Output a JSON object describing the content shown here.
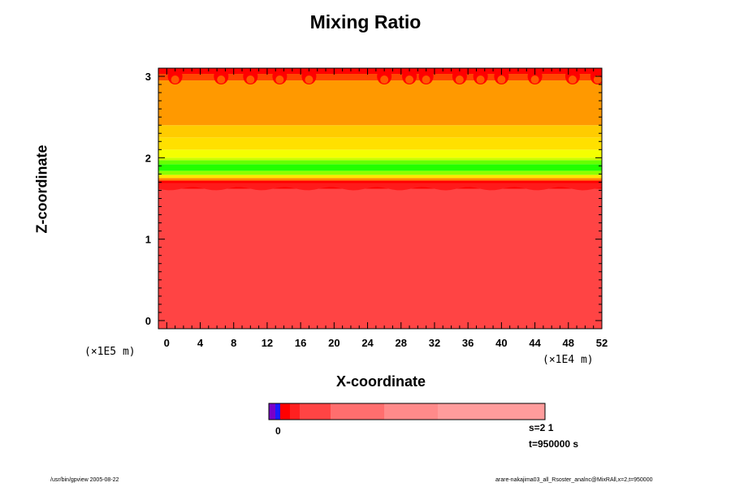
{
  "title": "Mixing Ratio",
  "x_title": "X-coordinate",
  "y_title": "Z-coordinate",
  "y_unit": "(×1E5 m)",
  "x_unit": "(×1E4 m)",
  "info": {
    "s": "s=2 1",
    "t": "t=950000 s"
  },
  "colorbar": {
    "zero_label": "0",
    "colors": [
      "#7a00c8",
      "#1a1aff",
      "#ff0000",
      "#ff2020",
      "#ff4444",
      "#ff6e6e",
      "#ff8a8a",
      "#ff9c9c"
    ]
  },
  "footer": {
    "left": "/usr/bin/gpview 2005-08-22",
    "right": "arare-nakajima03_all_Rsoster_analnc@MixRAll,x=2,t=950000"
  },
  "chart_data": {
    "type": "heatmap",
    "title": "Mixing Ratio",
    "xlabel": "X-coordinate",
    "ylabel": "Z-coordinate",
    "x_unit": "(×1E4 m)",
    "y_unit": "(×1E5 m)",
    "xlim": [
      -1,
      52
    ],
    "ylim": [
      -0.1,
      3.1
    ],
    "x_ticks": [
      "0",
      "4",
      "8",
      "12",
      "16",
      "20",
      "24",
      "28",
      "32",
      "36",
      "40",
      "44",
      "48",
      "52"
    ],
    "x_tick_values": [
      0,
      4,
      8,
      12,
      16,
      20,
      24,
      28,
      32,
      36,
      40,
      44,
      48,
      52
    ],
    "y_ticks": [
      "0",
      "1",
      "2",
      "3"
    ],
    "y_tick_values": [
      0,
      1,
      2,
      3
    ],
    "layers": [
      {
        "z0": -0.1,
        "z1": 1.65,
        "color": "#ff4444"
      },
      {
        "z0": 1.62,
        "z1": 1.72,
        "color": "#ff0000"
      },
      {
        "z0": 1.72,
        "z1": 1.75,
        "color": "#ff8800"
      },
      {
        "z0": 1.75,
        "z1": 1.79,
        "color": "#ffe600"
      },
      {
        "z0": 1.79,
        "z1": 1.84,
        "color": "#8cff00"
      },
      {
        "z0": 1.84,
        "z1": 1.92,
        "color": "#22ff00"
      },
      {
        "z0": 1.92,
        "z1": 1.97,
        "color": "#66ff00"
      },
      {
        "z0": 1.97,
        "z1": 2.0,
        "color": "#c8ff00"
      },
      {
        "z0": 2.0,
        "z1": 2.1,
        "color": "#f5ff00"
      },
      {
        "z0": 2.1,
        "z1": 2.25,
        "color": "#ffe000"
      },
      {
        "z0": 2.25,
        "z1": 2.4,
        "color": "#ffcc00"
      },
      {
        "z0": 2.4,
        "z1": 2.95,
        "color": "#ff9900"
      },
      {
        "z0": 2.95,
        "z1": 3.03,
        "color": "#ff4400"
      },
      {
        "z0": 3.03,
        "z1": 3.1,
        "color": "#ff0000"
      }
    ],
    "top_blob_x": [
      1,
      6.5,
      10,
      13.5,
      17,
      26,
      29,
      31,
      35,
      37.5,
      40,
      44,
      48.5,
      51.5
    ],
    "grid": false
  }
}
